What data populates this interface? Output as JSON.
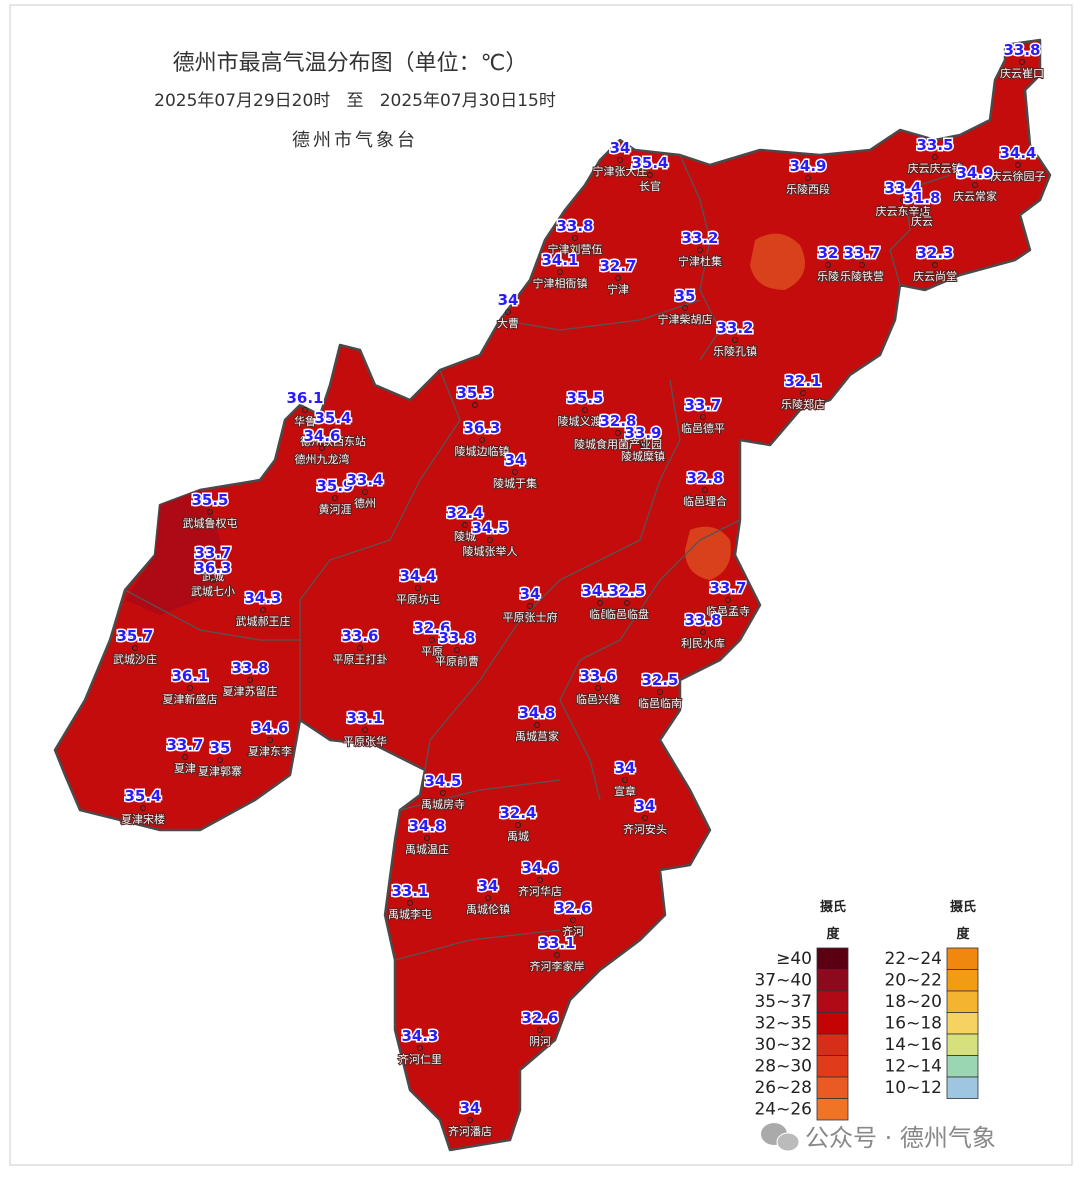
{
  "title": "德州市最高气温分布图（单位：℃）",
  "subtitle": "2025年07月29日20时   至   2025年07月30日15时",
  "agency": "德州市气象台",
  "stations": [
    {
      "value": 33.8,
      "name": "庆云崔口"
    },
    {
      "value": 34,
      "name": "宁津张大庄"
    },
    {
      "value": 35.4,
      "name": "长官"
    },
    {
      "value": 34.9,
      "name": "乐陵西段"
    },
    {
      "value": 33.5,
      "name": "庆云庆云镇"
    },
    {
      "value": 34.4,
      "name": "庆云徐园子"
    },
    {
      "value": 33.4,
      "name": "庆云东辛店"
    },
    {
      "value": 34.9,
      "name": "庆云常家"
    },
    {
      "value": 31.8,
      "name": "庆云"
    },
    {
      "value": 33.8,
      "name": "宁津刘营伍"
    },
    {
      "value": 34.1,
      "name": "宁津相衙镇"
    },
    {
      "value": 32.7,
      "name": "宁津"
    },
    {
      "value": 33.2,
      "name": "宁津杜集"
    },
    {
      "value": 32,
      "name": "乐陵"
    },
    {
      "value": 33.7,
      "name": "乐陵铁营"
    },
    {
      "value": 32.3,
      "name": "庆云尚堂"
    },
    {
      "value": 34,
      "name": "大曹"
    },
    {
      "value": 35,
      "name": "宁津柴胡店"
    },
    {
      "value": 33.2,
      "name": "乐陵孔镇"
    },
    {
      "value": 32.1,
      "name": "乐陵郑店"
    },
    {
      "value": 36.1,
      "name": "华鲁"
    },
    {
      "value": 35.4,
      "name": "德州铁西东站"
    },
    {
      "value": 34.6,
      "name": "德州九龙湾"
    },
    {
      "value": 35.3
    },
    {
      "value": 36.3,
      "name": "陵城边临镇"
    },
    {
      "value": 35.5,
      "name": "陵城义渡口"
    },
    {
      "value": 32.8,
      "name": "陵城食用菌产业园"
    },
    {
      "value": 33.9,
      "name": "陵城糜镇"
    },
    {
      "value": 33.7,
      "name": "临邑德平"
    },
    {
      "value": 34,
      "name": "陵城于集"
    },
    {
      "value": 32.8,
      "name": "临邑理合"
    },
    {
      "value": 35.9,
      "name": "黄河涯"
    },
    {
      "value": 33.4,
      "name": "德州"
    },
    {
      "value": 35.5,
      "name": "武城鲁权屯"
    },
    {
      "value": 32.4,
      "name": "陵城"
    },
    {
      "value": 34.5,
      "name": "陵城张举人"
    },
    {
      "value": 33.7,
      "name": "武城"
    },
    {
      "value": 36.3,
      "name": "武城七小"
    },
    {
      "value": 34.3,
      "name": "武城郝王庄"
    },
    {
      "value": 34.4,
      "name": "平原坊屯"
    },
    {
      "value": 34,
      "name": "平原张士府"
    },
    {
      "value": 34.3,
      "name": "临邑"
    },
    {
      "value": 32.5,
      "name": "临邑临盘"
    },
    {
      "value": 33.7,
      "name": "临邑孟寺"
    },
    {
      "value": 35.7,
      "name": "武城沙庄"
    },
    {
      "value": 33.6,
      "name": "平原王打卦"
    },
    {
      "value": 32.6,
      "name": "平原"
    },
    {
      "value": 33.8,
      "name": "平原前曹"
    },
    {
      "value": 33.8,
      "name": "利民水库"
    },
    {
      "value": 36.1,
      "name": "夏津新盛店"
    },
    {
      "value": 33.8,
      "name": "夏津苏留庄"
    },
    {
      "value": 33.6,
      "name": "临邑兴隆"
    },
    {
      "value": 32.5,
      "name": "临邑临南"
    },
    {
      "value": 34.6,
      "name": "夏津东李"
    },
    {
      "value": 33.1,
      "name": "平原张华"
    },
    {
      "value": 34.8,
      "name": "禹城莒家"
    },
    {
      "value": 33.7,
      "name": "夏津"
    },
    {
      "value": 35,
      "name": "夏津郭寨"
    },
    {
      "value": 34,
      "name": "宣章"
    },
    {
      "value": 34,
      "name": "齐河安头"
    },
    {
      "value": 35.4,
      "name": "夏津宋楼"
    },
    {
      "value": 34.5,
      "name": "禹城房寺"
    },
    {
      "value": 34.8,
      "name": "禹城温庄"
    },
    {
      "value": 32.4,
      "name": "禹城"
    },
    {
      "value": 34.6,
      "name": "齐河华店"
    },
    {
      "value": 34,
      "name": "禹城伦镇"
    },
    {
      "value": 33.1,
      "name": "禹城李屯"
    },
    {
      "value": 32.6,
      "name": "齐河"
    },
    {
      "value": 33.1,
      "name": "齐河李家岸"
    },
    {
      "value": 32.6,
      "name": "阴河"
    },
    {
      "value": 34.3,
      "name": "齐河仁里"
    },
    {
      "value": 34,
      "name": "齐河潘店"
    }
  ],
  "legend": {
    "columns": [
      {
        "heading": "摄氏",
        "heading2": "度",
        "items": [
          {
            "label": "≥40",
            "color": "#5a0012"
          },
          {
            "label": "37~40",
            "color": "#8c0a1e"
          },
          {
            "label": "35~37",
            "color": "#b00a16"
          },
          {
            "label": "32~35",
            "color": "#c40404"
          },
          {
            "label": "30~32",
            "color": "#d62e18"
          },
          {
            "label": "28~30",
            "color": "#e03c1c"
          },
          {
            "label": "26~28",
            "color": "#ea5a24"
          },
          {
            "label": "24~26",
            "color": "#f07426"
          }
        ]
      },
      {
        "heading": "摄氏",
        "heading2": "度",
        "items": [
          {
            "label": "22~24",
            "color": "#f08810"
          },
          {
            "label": "20~22",
            "color": "#f29c16"
          },
          {
            "label": "18~20",
            "color": "#f5b430"
          },
          {
            "label": "16~18",
            "color": "#f5d262"
          },
          {
            "label": "14~16",
            "color": "#d6e07c"
          },
          {
            "label": "12~14",
            "color": "#9ad6b2"
          },
          {
            "label": "10~12",
            "color": "#9fc6e0"
          }
        ]
      }
    ]
  },
  "watermark": "公众号 · 德州气象"
}
